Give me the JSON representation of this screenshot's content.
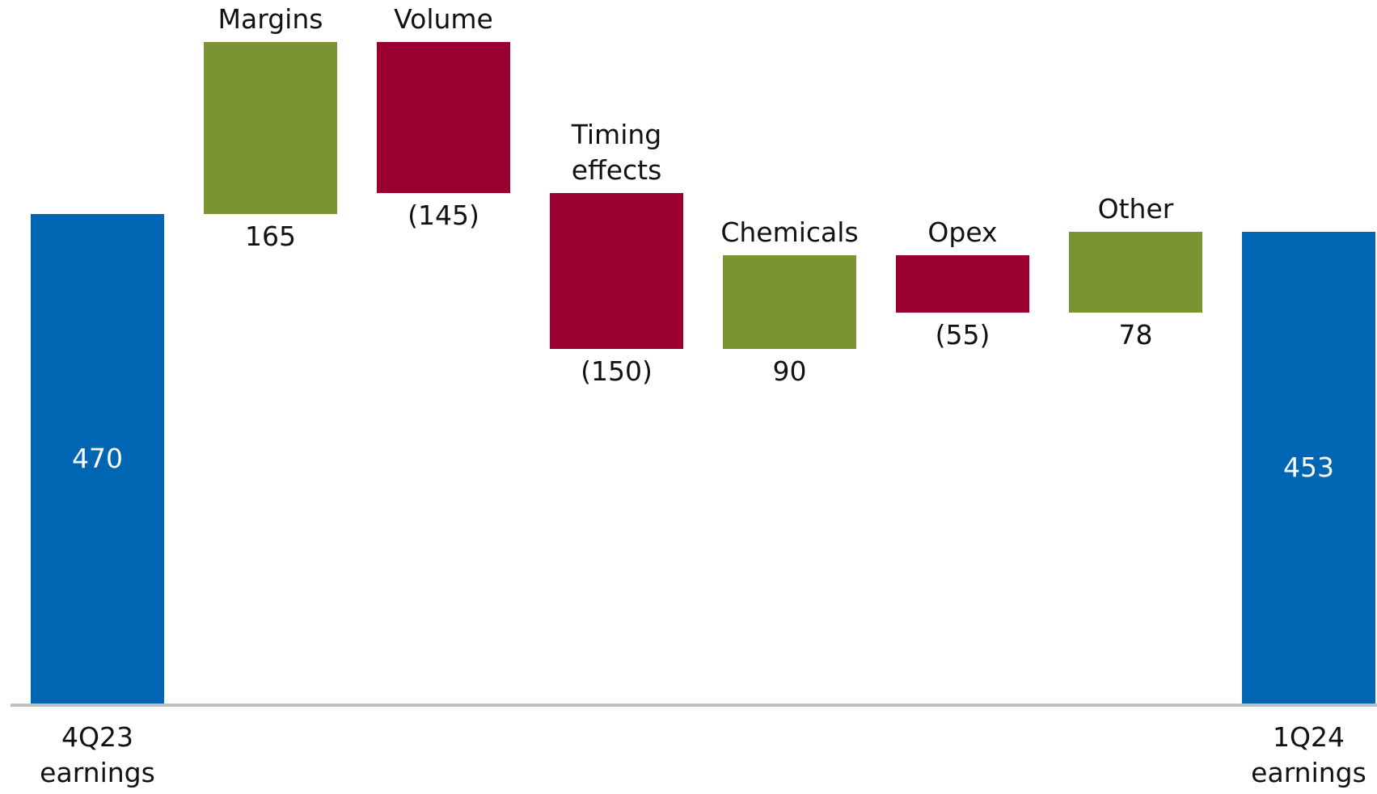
{
  "chart_data": {
    "type": "waterfall",
    "categories": [
      "4Q23 earnings",
      "Margins",
      "Volume",
      "Timing effects",
      "Chemicals",
      "Opex",
      "Other",
      "1Q24 earnings"
    ],
    "values": [
      470,
      165,
      -145,
      -150,
      90,
      -55,
      78,
      453
    ],
    "value_labels": [
      "470",
      "165",
      "(145)",
      "(150)",
      "90",
      "(55)",
      "78",
      "453"
    ],
    "measure": [
      "total",
      "relative",
      "relative",
      "relative",
      "relative",
      "relative",
      "relative",
      "total"
    ],
    "colors": {
      "total": "#0066b3",
      "increase": "#7a9433",
      "decrease": "#990030"
    }
  }
}
